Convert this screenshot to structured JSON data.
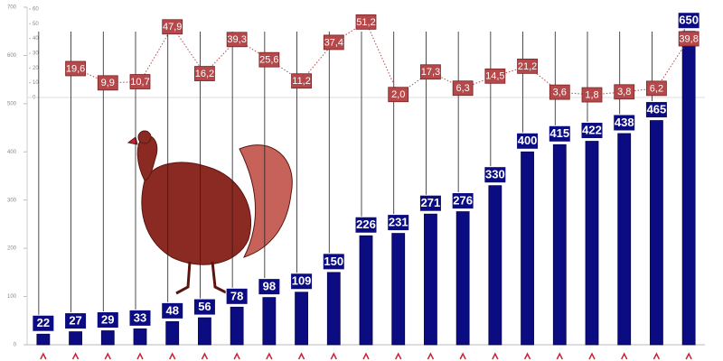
{
  "chart_data": {
    "type": "bar",
    "categories": [
      null,
      null,
      null,
      null,
      null,
      null,
      null,
      null,
      null,
      null,
      null,
      null,
      null,
      null,
      null,
      null,
      null,
      null,
      null,
      null,
      null
    ],
    "series": [
      {
        "type": "bar",
        "color": "#0b0b82",
        "values": [
          22,
          27,
          29,
          33,
          48,
          56,
          78,
          98,
          109,
          150,
          226,
          231,
          271,
          276,
          330,
          400,
          415,
          422,
          438,
          465,
          650
        ]
      },
      {
        "type": "line",
        "axis": "y2",
        "color": "#b5484a",
        "values": [
          null,
          19.6,
          9.9,
          10.7,
          47.9,
          16.2,
          39.3,
          25.6,
          11.2,
          37.4,
          51.2,
          2.0,
          17.3,
          6.3,
          14.5,
          21.2,
          3.6,
          1.8,
          3.8,
          6.2,
          39.8
        ],
        "value_labels": [
          null,
          "19,6",
          "9,9",
          "10,7",
          "47,9",
          "16,2",
          "39,3",
          "25,6",
          "11,2",
          "37,4",
          "51,2",
          "2,0",
          "17,3",
          "6,3",
          "14,5",
          "21,2",
          "3,6",
          "1,8",
          "3,8",
          "6,2",
          "39,8"
        ]
      }
    ],
    "ylim": [
      0,
      700
    ],
    "yticks": [
      0,
      100,
      200,
      300,
      400,
      500,
      600,
      700
    ],
    "y2lim": [
      0,
      60
    ],
    "y2ticks": [
      0,
      10,
      20,
      30,
      40,
      50,
      60
    ]
  }
}
